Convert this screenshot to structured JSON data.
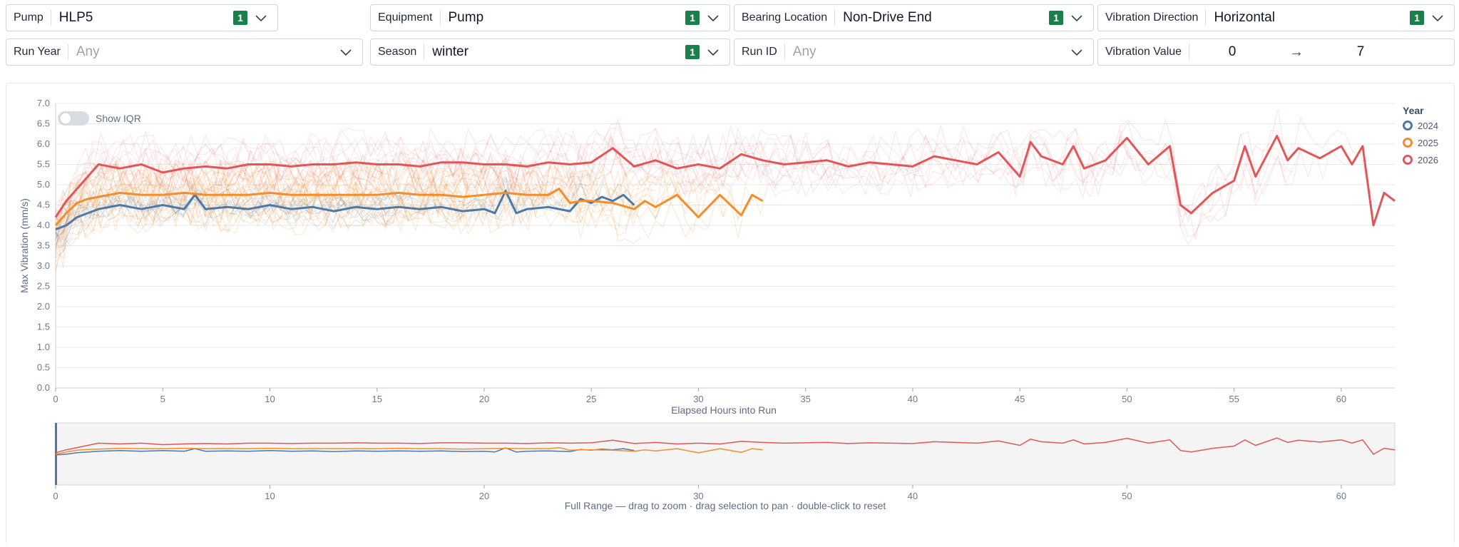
{
  "filters": {
    "pump": {
      "label": "Pump",
      "value": "HLP5",
      "badge": "1"
    },
    "equipment": {
      "label": "Equipment",
      "value": "Pump",
      "badge": "1"
    },
    "bearing_location": {
      "label": "Bearing Location",
      "value": "Non-Drive End",
      "badge": "1"
    },
    "vibration_direction": {
      "label": "Vibration Direction",
      "value": "Horizontal",
      "badge": "1"
    },
    "run_year": {
      "label": "Run Year",
      "placeholder": "Any"
    },
    "season": {
      "label": "Season",
      "value": "winter",
      "badge": "1"
    },
    "run_id": {
      "label": "Run ID",
      "placeholder": "Any"
    },
    "vibration_value": {
      "label": "Vibration Value",
      "min": "0",
      "arrow": "→",
      "max": "7"
    }
  },
  "iqr_toggle": {
    "label": "Show IQR",
    "on": false
  },
  "legend": {
    "title": "Year",
    "items": [
      {
        "label": "2024",
        "color": "#4e79a7"
      },
      {
        "label": "2025",
        "color": "#f28e2b"
      },
      {
        "label": "2026",
        "color": "#e15759"
      }
    ]
  },
  "navigator": {
    "caption": "Full Range — drag to zoom · drag selection to pan · double-click to reset",
    "ticks": [
      0,
      10,
      20,
      30,
      40,
      50,
      60
    ]
  },
  "chart_data": {
    "type": "line",
    "xlabel": "Elapsed Hours into Run",
    "ylabel": "Max Vibration (mm/s)",
    "xlim": [
      0,
      62.5
    ],
    "ylim": [
      0,
      7
    ],
    "xticks": [
      0,
      5,
      10,
      15,
      20,
      25,
      30,
      35,
      40,
      45,
      50,
      55,
      60
    ],
    "yticks": [
      "0.0",
      "0.5",
      "1.0",
      "1.5",
      "2.0",
      "2.5",
      "3.0",
      "3.5",
      "4.0",
      "4.5",
      "5.0",
      "5.5",
      "6.0",
      "6.5",
      "7.0"
    ],
    "grid": true,
    "legend_position": "right",
    "series": [
      {
        "name": "2024",
        "color": "#4e79a7",
        "x": [
          0,
          0.5,
          1,
          1.5,
          2,
          3,
          4,
          5,
          6,
          6.5,
          7,
          8,
          9,
          10,
          11,
          12,
          13,
          14,
          15,
          16,
          17,
          18,
          19,
          20,
          20.5,
          21,
          21.5,
          22,
          23,
          24,
          24.5,
          25,
          25.5,
          26,
          26.5,
          27
        ],
        "y": [
          3.9,
          4.0,
          4.2,
          4.3,
          4.4,
          4.5,
          4.4,
          4.5,
          4.4,
          4.75,
          4.4,
          4.45,
          4.4,
          4.5,
          4.4,
          4.45,
          4.35,
          4.45,
          4.4,
          4.45,
          4.4,
          4.45,
          4.35,
          4.4,
          4.3,
          4.85,
          4.3,
          4.4,
          4.45,
          4.35,
          4.65,
          4.55,
          4.7,
          4.6,
          4.75,
          4.5
        ]
      },
      {
        "name": "2025",
        "color": "#f28e2b",
        "x": [
          0,
          0.5,
          1,
          1.5,
          2,
          3,
          4,
          5,
          6,
          7,
          8,
          9,
          10,
          11,
          12,
          13,
          14,
          15,
          16,
          17,
          18,
          19,
          20,
          21,
          22,
          23,
          23.5,
          24,
          24.5,
          25,
          26,
          27,
          27.5,
          28,
          29,
          30,
          31,
          32,
          32.5,
          33
        ],
        "y": [
          4.0,
          4.3,
          4.55,
          4.65,
          4.7,
          4.8,
          4.75,
          4.75,
          4.8,
          4.75,
          4.75,
          4.75,
          4.8,
          4.75,
          4.75,
          4.75,
          4.75,
          4.75,
          4.8,
          4.75,
          4.75,
          4.7,
          4.75,
          4.8,
          4.75,
          4.75,
          4.9,
          4.55,
          4.6,
          4.6,
          4.55,
          4.4,
          4.6,
          4.45,
          4.75,
          4.2,
          4.75,
          4.25,
          4.75,
          4.6
        ]
      },
      {
        "name": "2026",
        "color": "#e15759",
        "x": [
          0,
          0.5,
          1,
          1.5,
          2,
          3,
          4,
          5,
          6,
          7,
          8,
          9,
          10,
          11,
          12,
          13,
          14,
          15,
          16,
          17,
          18,
          19,
          20,
          21,
          22,
          23,
          24,
          25,
          26,
          27,
          28,
          29,
          30,
          31,
          32,
          33,
          34,
          35,
          36,
          37,
          38,
          39,
          40,
          41,
          42,
          43,
          44,
          45,
          45.5,
          46,
          47,
          47.5,
          48,
          49,
          50,
          51,
          52,
          52.5,
          53,
          54,
          55,
          55.5,
          56,
          57,
          57.5,
          58,
          59,
          60,
          60.5,
          61,
          61.5,
          62,
          62.5
        ],
        "y": [
          4.2,
          4.6,
          4.9,
          5.2,
          5.5,
          5.4,
          5.5,
          5.3,
          5.4,
          5.45,
          5.4,
          5.5,
          5.5,
          5.45,
          5.5,
          5.5,
          5.55,
          5.5,
          5.5,
          5.45,
          5.55,
          5.55,
          5.5,
          5.5,
          5.45,
          5.55,
          5.5,
          5.55,
          5.9,
          5.45,
          5.6,
          5.4,
          5.5,
          5.4,
          5.75,
          5.6,
          5.5,
          5.55,
          5.6,
          5.45,
          5.55,
          5.5,
          5.45,
          5.7,
          5.6,
          5.5,
          5.8,
          5.2,
          6.05,
          5.7,
          5.5,
          5.95,
          5.4,
          5.6,
          6.15,
          5.5,
          5.95,
          4.5,
          4.3,
          4.8,
          5.1,
          5.95,
          5.2,
          6.2,
          5.6,
          5.9,
          5.65,
          5.95,
          5.5,
          5.95,
          4.0,
          4.8,
          4.6
        ]
      }
    ]
  }
}
